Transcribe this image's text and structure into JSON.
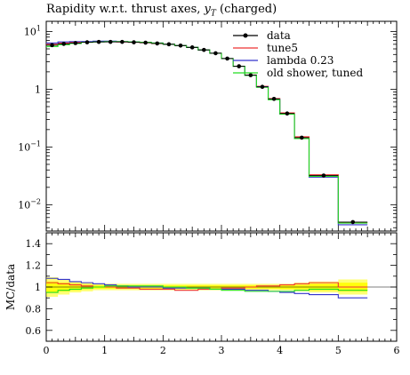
{
  "header": {
    "title_text": "Rapidity w.r.t. thrust axes, ",
    "title_var": "y",
    "title_sub": "T",
    "title_tail": " (charged)"
  },
  "chart_data": [
    {
      "type": "line",
      "role": "main",
      "yscale": "log",
      "xlim": [
        0,
        6
      ],
      "ylim": [
        0.0035,
        15
      ],
      "ytick_labels": [
        {
          "v": 10,
          "mantissa": "10",
          "exp": "1"
        },
        {
          "v": 1,
          "mantissa": "1",
          "exp": ""
        },
        {
          "v": 0.1,
          "mantissa": "10",
          "exp": "−1"
        },
        {
          "v": 0.01,
          "mantissa": "10",
          "exp": "−2"
        }
      ],
      "legend_position": "top-right",
      "bin_edges": [
        0,
        0.2,
        0.4,
        0.6,
        0.8,
        1.0,
        1.2,
        1.4,
        1.6,
        1.8,
        2.0,
        2.2,
        2.4,
        2.6,
        2.8,
        3.0,
        3.2,
        3.4,
        3.6,
        3.8,
        4.0,
        4.25,
        4.5,
        5.0,
        5.5,
        6.0
      ],
      "series": [
        {
          "name": "data",
          "color": "#000000",
          "style": "points",
          "values": [
            5.8,
            6.1,
            6.3,
            6.5,
            6.6,
            6.6,
            6.6,
            6.5,
            6.4,
            6.2,
            6.0,
            5.7,
            5.3,
            4.8,
            4.2,
            3.4,
            2.5,
            1.75,
            1.1,
            0.68,
            0.38,
            0.145,
            0.032,
            0.005
          ]
        },
        {
          "name": "tune5",
          "color": "#ee3333",
          "style": "step",
          "values": [
            6.0,
            6.3,
            6.5,
            6.6,
            6.7,
            6.7,
            6.6,
            6.5,
            6.4,
            6.2,
            6.0,
            5.7,
            5.3,
            4.8,
            4.2,
            3.4,
            2.5,
            1.76,
            1.12,
            0.69,
            0.39,
            0.15,
            0.033,
            0.0049
          ]
        },
        {
          "name": "lambda 0.23",
          "color": "#3333cc",
          "style": "step",
          "values": [
            6.3,
            6.6,
            6.7,
            6.7,
            6.8,
            6.8,
            6.7,
            6.6,
            6.5,
            6.3,
            6.0,
            5.7,
            5.3,
            4.8,
            4.2,
            3.4,
            2.5,
            1.75,
            1.1,
            0.67,
            0.37,
            0.14,
            0.03,
            0.0045
          ]
        },
        {
          "name": "old shower, tuned",
          "color": "#22dd22",
          "style": "step",
          "values": [
            5.5,
            5.9,
            6.2,
            6.5,
            6.6,
            6.7,
            6.7,
            6.6,
            6.5,
            6.3,
            6.0,
            5.7,
            5.3,
            4.8,
            4.2,
            3.4,
            2.5,
            1.74,
            1.08,
            0.66,
            0.37,
            0.14,
            0.031,
            0.0048
          ]
        }
      ]
    },
    {
      "type": "line",
      "role": "ratio",
      "ylabel": "MC/data",
      "xlim": [
        0,
        6
      ],
      "ylim": [
        0.5,
        1.5
      ],
      "yticks": [
        0.6,
        0.8,
        1.0,
        1.2,
        1.4
      ],
      "ytick_labels": [
        "0.6",
        "0.8",
        "1",
        "1.2",
        "1.4"
      ],
      "xticks": [
        0,
        1,
        2,
        3,
        4,
        5,
        6
      ],
      "xtick_labels": [
        "0",
        "1",
        "2",
        "3",
        "4",
        "5",
        "6"
      ],
      "data_band": {
        "color": "#ffff00",
        "outer_halfwidth": [
          0.09,
          0.07,
          0.05,
          0.04,
          0.03,
          0.03,
          0.03,
          0.03,
          0.03,
          0.03,
          0.03,
          0.03,
          0.03,
          0.03,
          0.03,
          0.03,
          0.03,
          0.03,
          0.03,
          0.03,
          0.03,
          0.04,
          0.05,
          0.07
        ],
        "inner_halfwidth": [
          0.05,
          0.04,
          0.03,
          0.02,
          0.015,
          0.015,
          0.015,
          0.015,
          0.015,
          0.015,
          0.015,
          0.015,
          0.015,
          0.015,
          0.015,
          0.015,
          0.015,
          0.015,
          0.015,
          0.015,
          0.02,
          0.02,
          0.03,
          0.04
        ]
      },
      "series": [
        {
          "name": "tune5",
          "color": "#ee3333",
          "values": [
            1.04,
            1.03,
            1.02,
            1.01,
            1.0,
            1.0,
            0.99,
            0.99,
            0.98,
            0.98,
            0.98,
            0.97,
            0.97,
            0.98,
            0.98,
            0.99,
            0.99,
            1.0,
            1.01,
            1.01,
            1.02,
            1.03,
            1.04,
            1.0
          ]
        },
        {
          "name": "lambda 0.23",
          "color": "#3333cc",
          "values": [
            1.08,
            1.07,
            1.05,
            1.04,
            1.03,
            1.02,
            1.01,
            1.0,
            1.0,
            1.0,
            0.99,
            0.99,
            0.99,
            0.99,
            0.98,
            0.98,
            0.98,
            0.97,
            0.97,
            0.96,
            0.95,
            0.94,
            0.93,
            0.9
          ]
        },
        {
          "name": "old shower, tuned",
          "color": "#22dd22",
          "values": [
            0.95,
            0.97,
            0.98,
            0.99,
            1.0,
            1.01,
            1.01,
            1.01,
            1.01,
            1.01,
            1.0,
            1.0,
            0.99,
            0.99,
            0.98,
            0.97,
            0.97,
            0.96,
            0.96,
            0.96,
            0.96,
            0.97,
            0.98,
            0.97
          ]
        }
      ]
    }
  ]
}
